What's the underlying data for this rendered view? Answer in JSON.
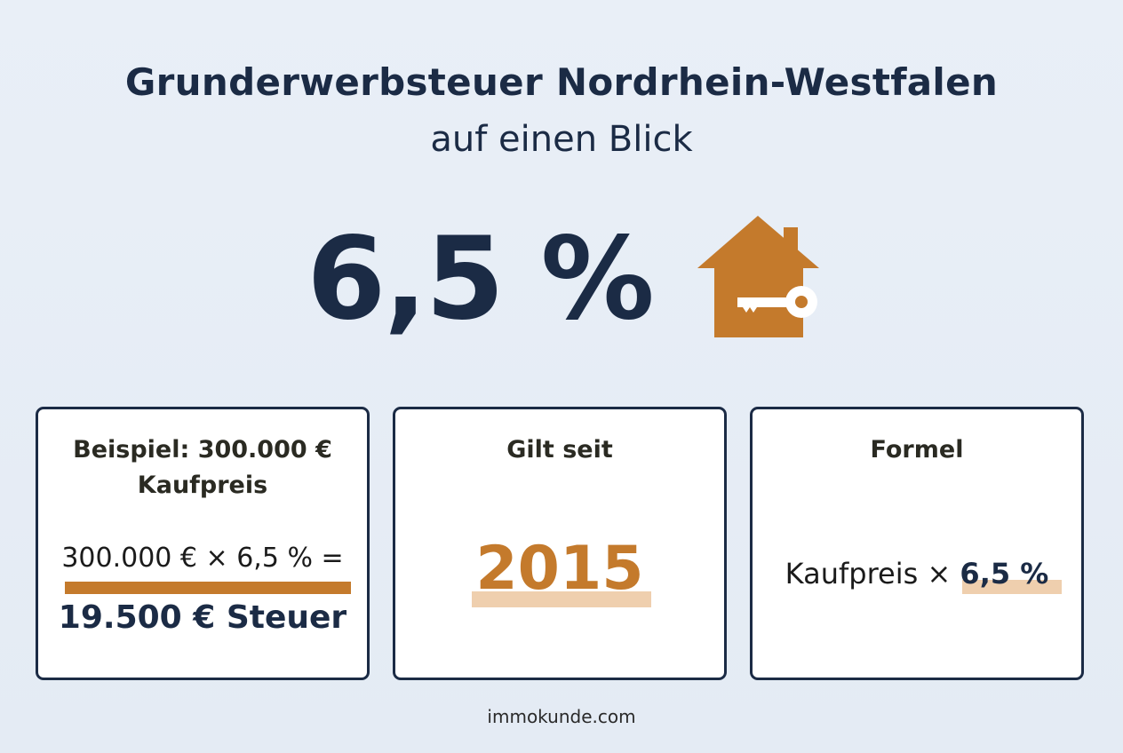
{
  "header": {
    "title_line1": "Grunderwerbsteuer Nordrhein-Westfalen",
    "title_line2": "auf einen Blick"
  },
  "rate": "6,5 %",
  "cards": [
    {
      "title_line1": "Beispiel: 300.000 €",
      "title_line2": "Kaufpreis",
      "calculation": "300.000 € × 6,5 % =",
      "result": "19.500 € Steuer"
    },
    {
      "title": "Gilt seit",
      "value": "2015"
    },
    {
      "title": "Formel",
      "formula_text": "Kaufpreis ×",
      "formula_rate": "6,5 %"
    }
  ],
  "footer": "immokunde.com"
}
